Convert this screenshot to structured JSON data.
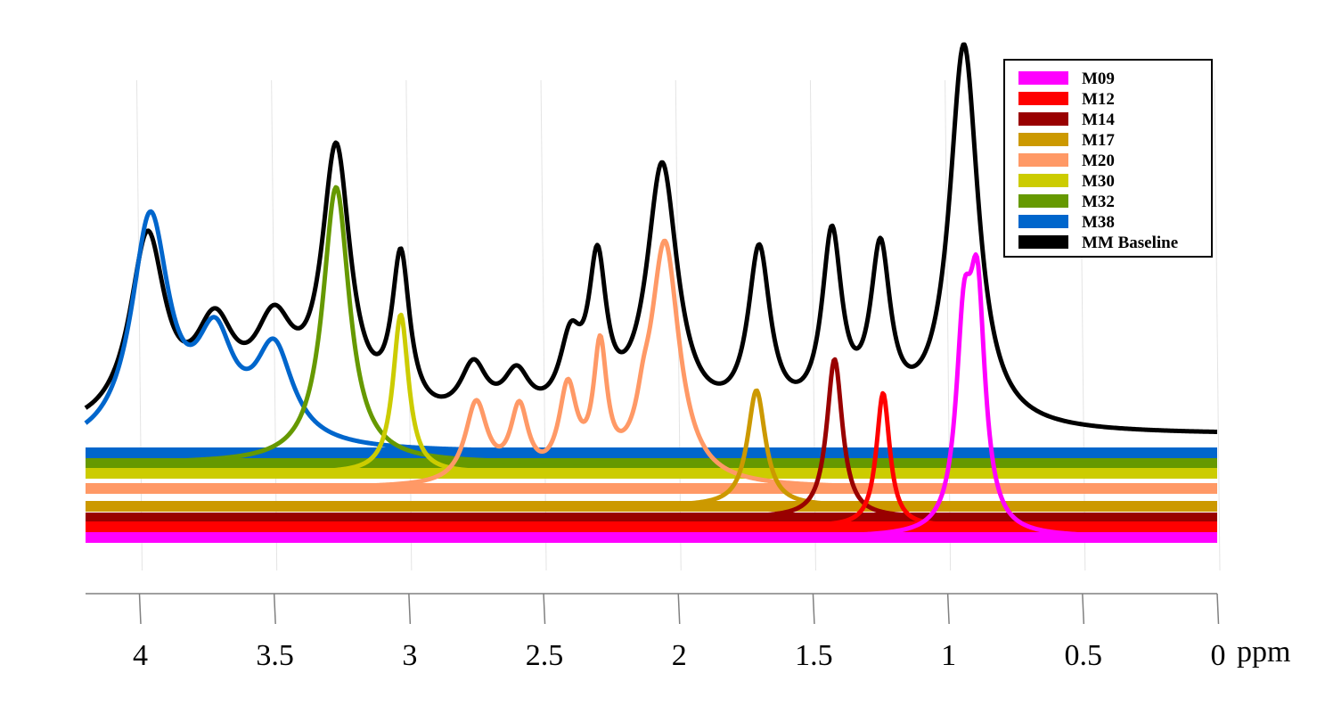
{
  "chart_data": {
    "type": "line",
    "title": "",
    "xlabel": "ppm",
    "ylabel": "",
    "x_axis": {
      "reversed": true,
      "xlim": [
        4.2,
        0
      ],
      "ticks": [
        4,
        3.5,
        3,
        2.5,
        2,
        1.5,
        1,
        0.5,
        0
      ]
    },
    "grid": true,
    "legend_position": "top-right",
    "series": [
      {
        "name": "M09",
        "color": "#ff00ff",
        "baseline": 0.0,
        "peaks": [
          {
            "ppm": 0.94,
            "height": 0.205,
            "width": 0.035
          },
          {
            "ppm": 0.89,
            "height": 0.245,
            "width": 0.035
          }
        ]
      },
      {
        "name": "M12",
        "color": "#ff0000",
        "baseline": 0.012,
        "peaks": [
          {
            "ppm": 1.24,
            "height": 0.15,
            "width": 0.03
          }
        ]
      },
      {
        "name": "M14",
        "color": "#990000",
        "baseline": 0.022,
        "peaks": [
          {
            "ppm": 1.42,
            "height": 0.178,
            "width": 0.035
          }
        ]
      },
      {
        "name": "M17",
        "color": "#cc9900",
        "baseline": 0.035,
        "peaks": [
          {
            "ppm": 1.71,
            "height": 0.13,
            "width": 0.04
          }
        ]
      },
      {
        "name": "M20",
        "color": "#ff9966",
        "baseline": 0.055,
        "peaks": [
          {
            "ppm": 2.05,
            "height": 0.27,
            "width": 0.065
          },
          {
            "ppm": 2.29,
            "height": 0.14,
            "width": 0.03
          },
          {
            "ppm": 2.41,
            "height": 0.1,
            "width": 0.04
          },
          {
            "ppm": 2.59,
            "height": 0.08,
            "width": 0.04
          },
          {
            "ppm": 2.75,
            "height": 0.09,
            "width": 0.05
          },
          {
            "ppm": 2.13,
            "height": 0.03,
            "width": 0.03
          }
        ]
      },
      {
        "name": "M30",
        "color": "#cccc00",
        "baseline": 0.072,
        "peaks": [
          {
            "ppm": 3.03,
            "height": 0.178,
            "width": 0.035
          }
        ]
      },
      {
        "name": "M32",
        "color": "#669900",
        "baseline": 0.083,
        "peaks": [
          {
            "ppm": 3.27,
            "height": 0.31,
            "width": 0.06
          }
        ]
      },
      {
        "name": "M38",
        "color": "#0066cc",
        "baseline": 0.095,
        "peaks": [
          {
            "ppm": 3.96,
            "height": 0.255,
            "width": 0.085
          },
          {
            "ppm": 3.72,
            "height": 0.11,
            "width": 0.085
          },
          {
            "ppm": 3.5,
            "height": 0.105,
            "width": 0.085
          }
        ]
      },
      {
        "name": "MM Baseline",
        "color": "#000000",
        "baseline": 0.115,
        "peaks": [
          {
            "ppm": 0.94,
            "height": 0.43,
            "width": 0.065
          },
          {
            "ppm": 1.25,
            "height": 0.185,
            "width": 0.045
          },
          {
            "ppm": 1.43,
            "height": 0.205,
            "width": 0.045
          },
          {
            "ppm": 1.7,
            "height": 0.19,
            "width": 0.05
          },
          {
            "ppm": 2.06,
            "height": 0.29,
            "width": 0.07
          },
          {
            "ppm": 2.3,
            "height": 0.165,
            "width": 0.04
          },
          {
            "ppm": 2.4,
            "height": 0.08,
            "width": 0.05
          },
          {
            "ppm": 2.6,
            "height": 0.05,
            "width": 0.06
          },
          {
            "ppm": 2.76,
            "height": 0.06,
            "width": 0.06
          },
          {
            "ppm": 3.03,
            "height": 0.175,
            "width": 0.04
          },
          {
            "ppm": 3.27,
            "height": 0.3,
            "width": 0.065
          },
          {
            "ppm": 3.5,
            "height": 0.1,
            "width": 0.09
          },
          {
            "ppm": 3.72,
            "height": 0.1,
            "width": 0.09
          },
          {
            "ppm": 3.97,
            "height": 0.21,
            "width": 0.08
          }
        ]
      }
    ]
  }
}
